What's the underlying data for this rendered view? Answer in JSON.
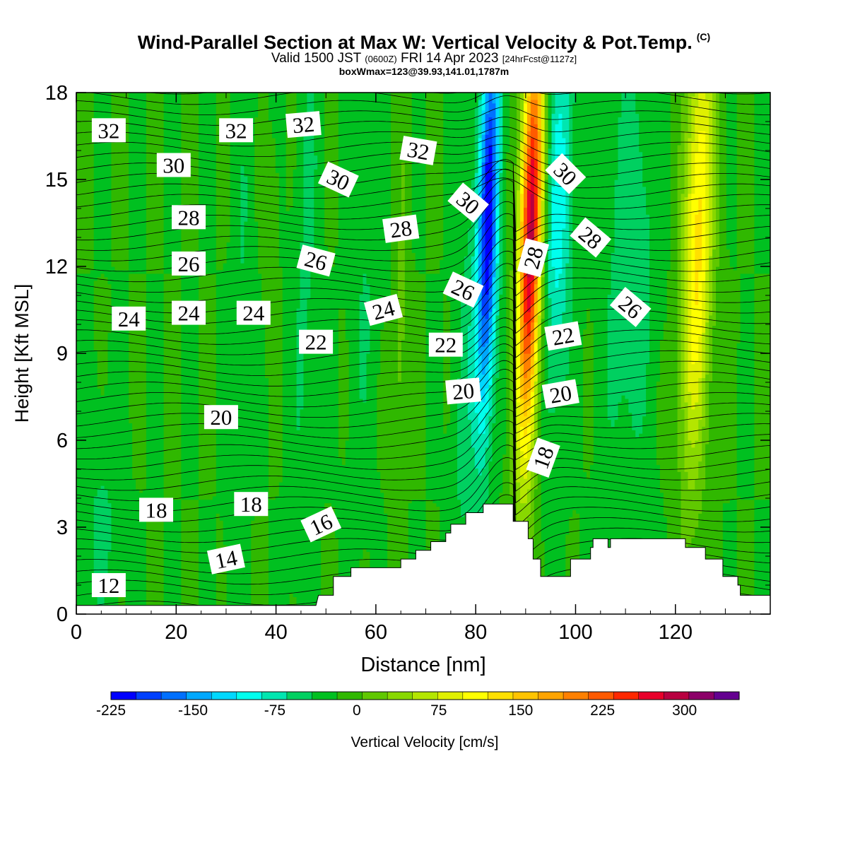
{
  "header": {
    "title": "Wind-Parallel Section at Max W: Vertical Velocity & Pot.Temp.",
    "copyright": "(C)",
    "valid_prefix": "Valid 1500 JST",
    "valid_z": "(0600Z)",
    "valid_date": "FRI 14 Apr 2023",
    "forecast": "[24hrFcst@1127z]",
    "boxinfo": "boxWmax=123@39.93,141.01,1787m"
  },
  "chart_data": {
    "type": "heatmap",
    "xlabel": "Distance [nm]",
    "ylabel": "Height [Kft MSL]",
    "xlim": [
      0,
      139
    ],
    "ylim": [
      0,
      18
    ],
    "x_ticks": [
      "0",
      "20",
      "40",
      "60",
      "80",
      "100",
      "120"
    ],
    "x_tick_values": [
      0,
      20,
      40,
      60,
      80,
      100,
      120
    ],
    "y_ticks": [
      "0",
      "3",
      "6",
      "9",
      "12",
      "15",
      "18"
    ],
    "y_tick_values": [
      0,
      3,
      6,
      9,
      12,
      15,
      18
    ],
    "colorbar": {
      "label": "Vertical Velocity [cm/s]",
      "tick_labels": [
        "-225",
        "-150",
        "-75",
        "0",
        "75",
        "150",
        "225",
        "300"
      ],
      "tick_values": [
        -225,
        -150,
        -75,
        0,
        75,
        150,
        225,
        300
      ],
      "min": -225,
      "max": 350,
      "step": 25,
      "colors": [
        "#0000ff",
        "#0040ff",
        "#0070ff",
        "#00a8ff",
        "#00d8ff",
        "#00ffee",
        "#00e6b0",
        "#00d060",
        "#00c020",
        "#30b800",
        "#60c800",
        "#88d800",
        "#b4e600",
        "#e0f000",
        "#ffff00",
        "#ffe000",
        "#ffc400",
        "#ffa400",
        "#ff8000",
        "#ff5a00",
        "#ff2800",
        "#e8002a",
        "#b80040",
        "#8c0068",
        "#640090"
      ]
    },
    "terrain_profile": [
      {
        "x": 0,
        "z": 0.3
      },
      {
        "x": 48,
        "z": 0.3
      },
      {
        "x": 48.5,
        "z": 0.65
      },
      {
        "x": 51.5,
        "z": 0.65
      },
      {
        "x": 51.5,
        "z": 1.3
      },
      {
        "x": 55,
        "z": 1.3
      },
      {
        "x": 55,
        "z": 1.6
      },
      {
        "x": 65,
        "z": 1.6
      },
      {
        "x": 65,
        "z": 1.9
      },
      {
        "x": 68,
        "z": 1.9
      },
      {
        "x": 68,
        "z": 2.2
      },
      {
        "x": 71,
        "z": 2.2
      },
      {
        "x": 71,
        "z": 2.5
      },
      {
        "x": 74,
        "z": 2.5
      },
      {
        "x": 74,
        "z": 2.8
      },
      {
        "x": 75,
        "z": 2.8
      },
      {
        "x": 75,
        "z": 3.1
      },
      {
        "x": 78,
        "z": 3.1
      },
      {
        "x": 78,
        "z": 3.5
      },
      {
        "x": 81.5,
        "z": 3.5
      },
      {
        "x": 81.5,
        "z": 3.8
      },
      {
        "x": 87.5,
        "z": 3.8
      },
      {
        "x": 87.5,
        "z": 3.2
      },
      {
        "x": 90.5,
        "z": 3.2
      },
      {
        "x": 90.5,
        "z": 2.6
      },
      {
        "x": 91.5,
        "z": 2.6
      },
      {
        "x": 91.5,
        "z": 1.9
      },
      {
        "x": 93,
        "z": 1.9
      },
      {
        "x": 93,
        "z": 1.3
      },
      {
        "x": 99,
        "z": 1.3
      },
      {
        "x": 99,
        "z": 1.9
      },
      {
        "x": 103,
        "z": 1.9
      },
      {
        "x": 103,
        "z": 2.3
      },
      {
        "x": 103.5,
        "z": 2.3
      },
      {
        "x": 103.5,
        "z": 2.6
      },
      {
        "x": 106.5,
        "z": 2.6
      },
      {
        "x": 106.5,
        "z": 2.3
      },
      {
        "x": 107,
        "z": 2.3
      },
      {
        "x": 107,
        "z": 2.6
      },
      {
        "x": 122,
        "z": 2.6
      },
      {
        "x": 122,
        "z": 2.3
      },
      {
        "x": 126,
        "z": 2.3
      },
      {
        "x": 126,
        "z": 1.9
      },
      {
        "x": 129.5,
        "z": 1.9
      },
      {
        "x": 129.5,
        "z": 1.3
      },
      {
        "x": 132.5,
        "z": 1.3
      },
      {
        "x": 132.5,
        "z": 1.0
      },
      {
        "x": 133,
        "z": 1.0
      },
      {
        "x": 133,
        "z": 0.65
      },
      {
        "x": 139,
        "z": 0.65
      }
    ],
    "velocity_features": [
      {
        "x": 82.5,
        "z": 13.5,
        "w": -225,
        "sx": 2.0,
        "sz": 7.0
      },
      {
        "x": 91.0,
        "z": 13.0,
        "w": 340,
        "sx": 2.3,
        "sz": 7.5
      },
      {
        "x": 96.5,
        "z": 14.0,
        "w": -90,
        "sx": 3.0,
        "sz": 7.0
      },
      {
        "x": 124.5,
        "z": 13.0,
        "w": 160,
        "sx": 3.0,
        "sz": 8.0
      },
      {
        "x": 111.0,
        "z": 12.0,
        "w": -45,
        "sx": 5.0,
        "sz": 8.0
      },
      {
        "x": 78.0,
        "z": 8.0,
        "w": -35,
        "sx": 2.5,
        "sz": 8.0
      },
      {
        "x": 65.0,
        "z": 10.0,
        "w": 35,
        "sx": 1.3,
        "sz": 8.0
      },
      {
        "x": 58.0,
        "z": 12.0,
        "w": -25,
        "sx": 3.0,
        "sz": 8.0
      },
      {
        "x": 46.0,
        "z": 12.0,
        "w": -30,
        "sx": 2.5,
        "sz": 10.0
      },
      {
        "x": 33.0,
        "z": 10.0,
        "w": -25,
        "sx": 2.0,
        "sz": 10.0
      },
      {
        "x": 5.0,
        "z": 3.0,
        "w": -30,
        "sx": 4.0,
        "sz": 4.0
      },
      {
        "x": 39.0,
        "z": 13.0,
        "w": 25,
        "sx": 1.2,
        "sz": 3.0
      }
    ],
    "theta_contours_labeled": [
      {
        "label": "12",
        "x": 6.5,
        "z": 1.0,
        "angle": 0
      },
      {
        "label": "14",
        "x": 30,
        "z": 1.9,
        "angle": -12
      },
      {
        "label": "16",
        "x": 49,
        "z": 3.1,
        "angle": -25
      },
      {
        "label": "18",
        "x": 16,
        "z": 3.6,
        "angle": 0
      },
      {
        "label": "18",
        "x": 35,
        "z": 3.8,
        "angle": 0
      },
      {
        "label": "18",
        "x": 93.5,
        "z": 5.4,
        "angle": -70
      },
      {
        "label": "20",
        "x": 29,
        "z": 6.8,
        "angle": 0
      },
      {
        "label": "20",
        "x": 77.5,
        "z": 7.7,
        "angle": -5
      },
      {
        "label": "20",
        "x": 97,
        "z": 7.6,
        "angle": -10
      },
      {
        "label": "22",
        "x": 48,
        "z": 9.4,
        "angle": 0
      },
      {
        "label": "22",
        "x": 74,
        "z": 9.3,
        "angle": 0
      },
      {
        "label": "22",
        "x": 97.5,
        "z": 9.6,
        "angle": -10
      },
      {
        "label": "24",
        "x": 10.5,
        "z": 10.2,
        "angle": 0
      },
      {
        "label": "24",
        "x": 22.5,
        "z": 10.4,
        "angle": 0
      },
      {
        "label": "24",
        "x": 35.5,
        "z": 10.4,
        "angle": 0
      },
      {
        "label": "24",
        "x": 61.5,
        "z": 10.5,
        "angle": -15
      },
      {
        "label": "26",
        "x": 22.5,
        "z": 12.1,
        "angle": 0
      },
      {
        "label": "26",
        "x": 48,
        "z": 12.2,
        "angle": 15
      },
      {
        "label": "26",
        "x": 77.5,
        "z": 11.2,
        "angle": 25
      },
      {
        "label": "26",
        "x": 111,
        "z": 10.6,
        "angle": 40
      },
      {
        "label": "28",
        "x": 22.5,
        "z": 13.7,
        "angle": 0
      },
      {
        "label": "28",
        "x": 65,
        "z": 13.3,
        "angle": -8
      },
      {
        "label": "28",
        "x": 91.5,
        "z": 12.3,
        "angle": -75
      },
      {
        "label": "28",
        "x": 103,
        "z": 13.0,
        "angle": 40
      },
      {
        "label": "30",
        "x": 19.5,
        "z": 15.5,
        "angle": 0
      },
      {
        "label": "30",
        "x": 52.5,
        "z": 15.0,
        "angle": 25
      },
      {
        "label": "30",
        "x": 78.5,
        "z": 14.2,
        "angle": 40
      },
      {
        "label": "30",
        "x": 98,
        "z": 15.2,
        "angle": 45
      },
      {
        "label": "32",
        "x": 6.5,
        "z": 16.7,
        "angle": 0
      },
      {
        "label": "32",
        "x": 32,
        "z": 16.7,
        "angle": 0
      },
      {
        "label": "32",
        "x": 45.5,
        "z": 16.9,
        "angle": -5
      },
      {
        "label": "32",
        "x": 68.5,
        "z": 16.0,
        "angle": 10
      }
    ],
    "theta_contour_count": 52
  }
}
